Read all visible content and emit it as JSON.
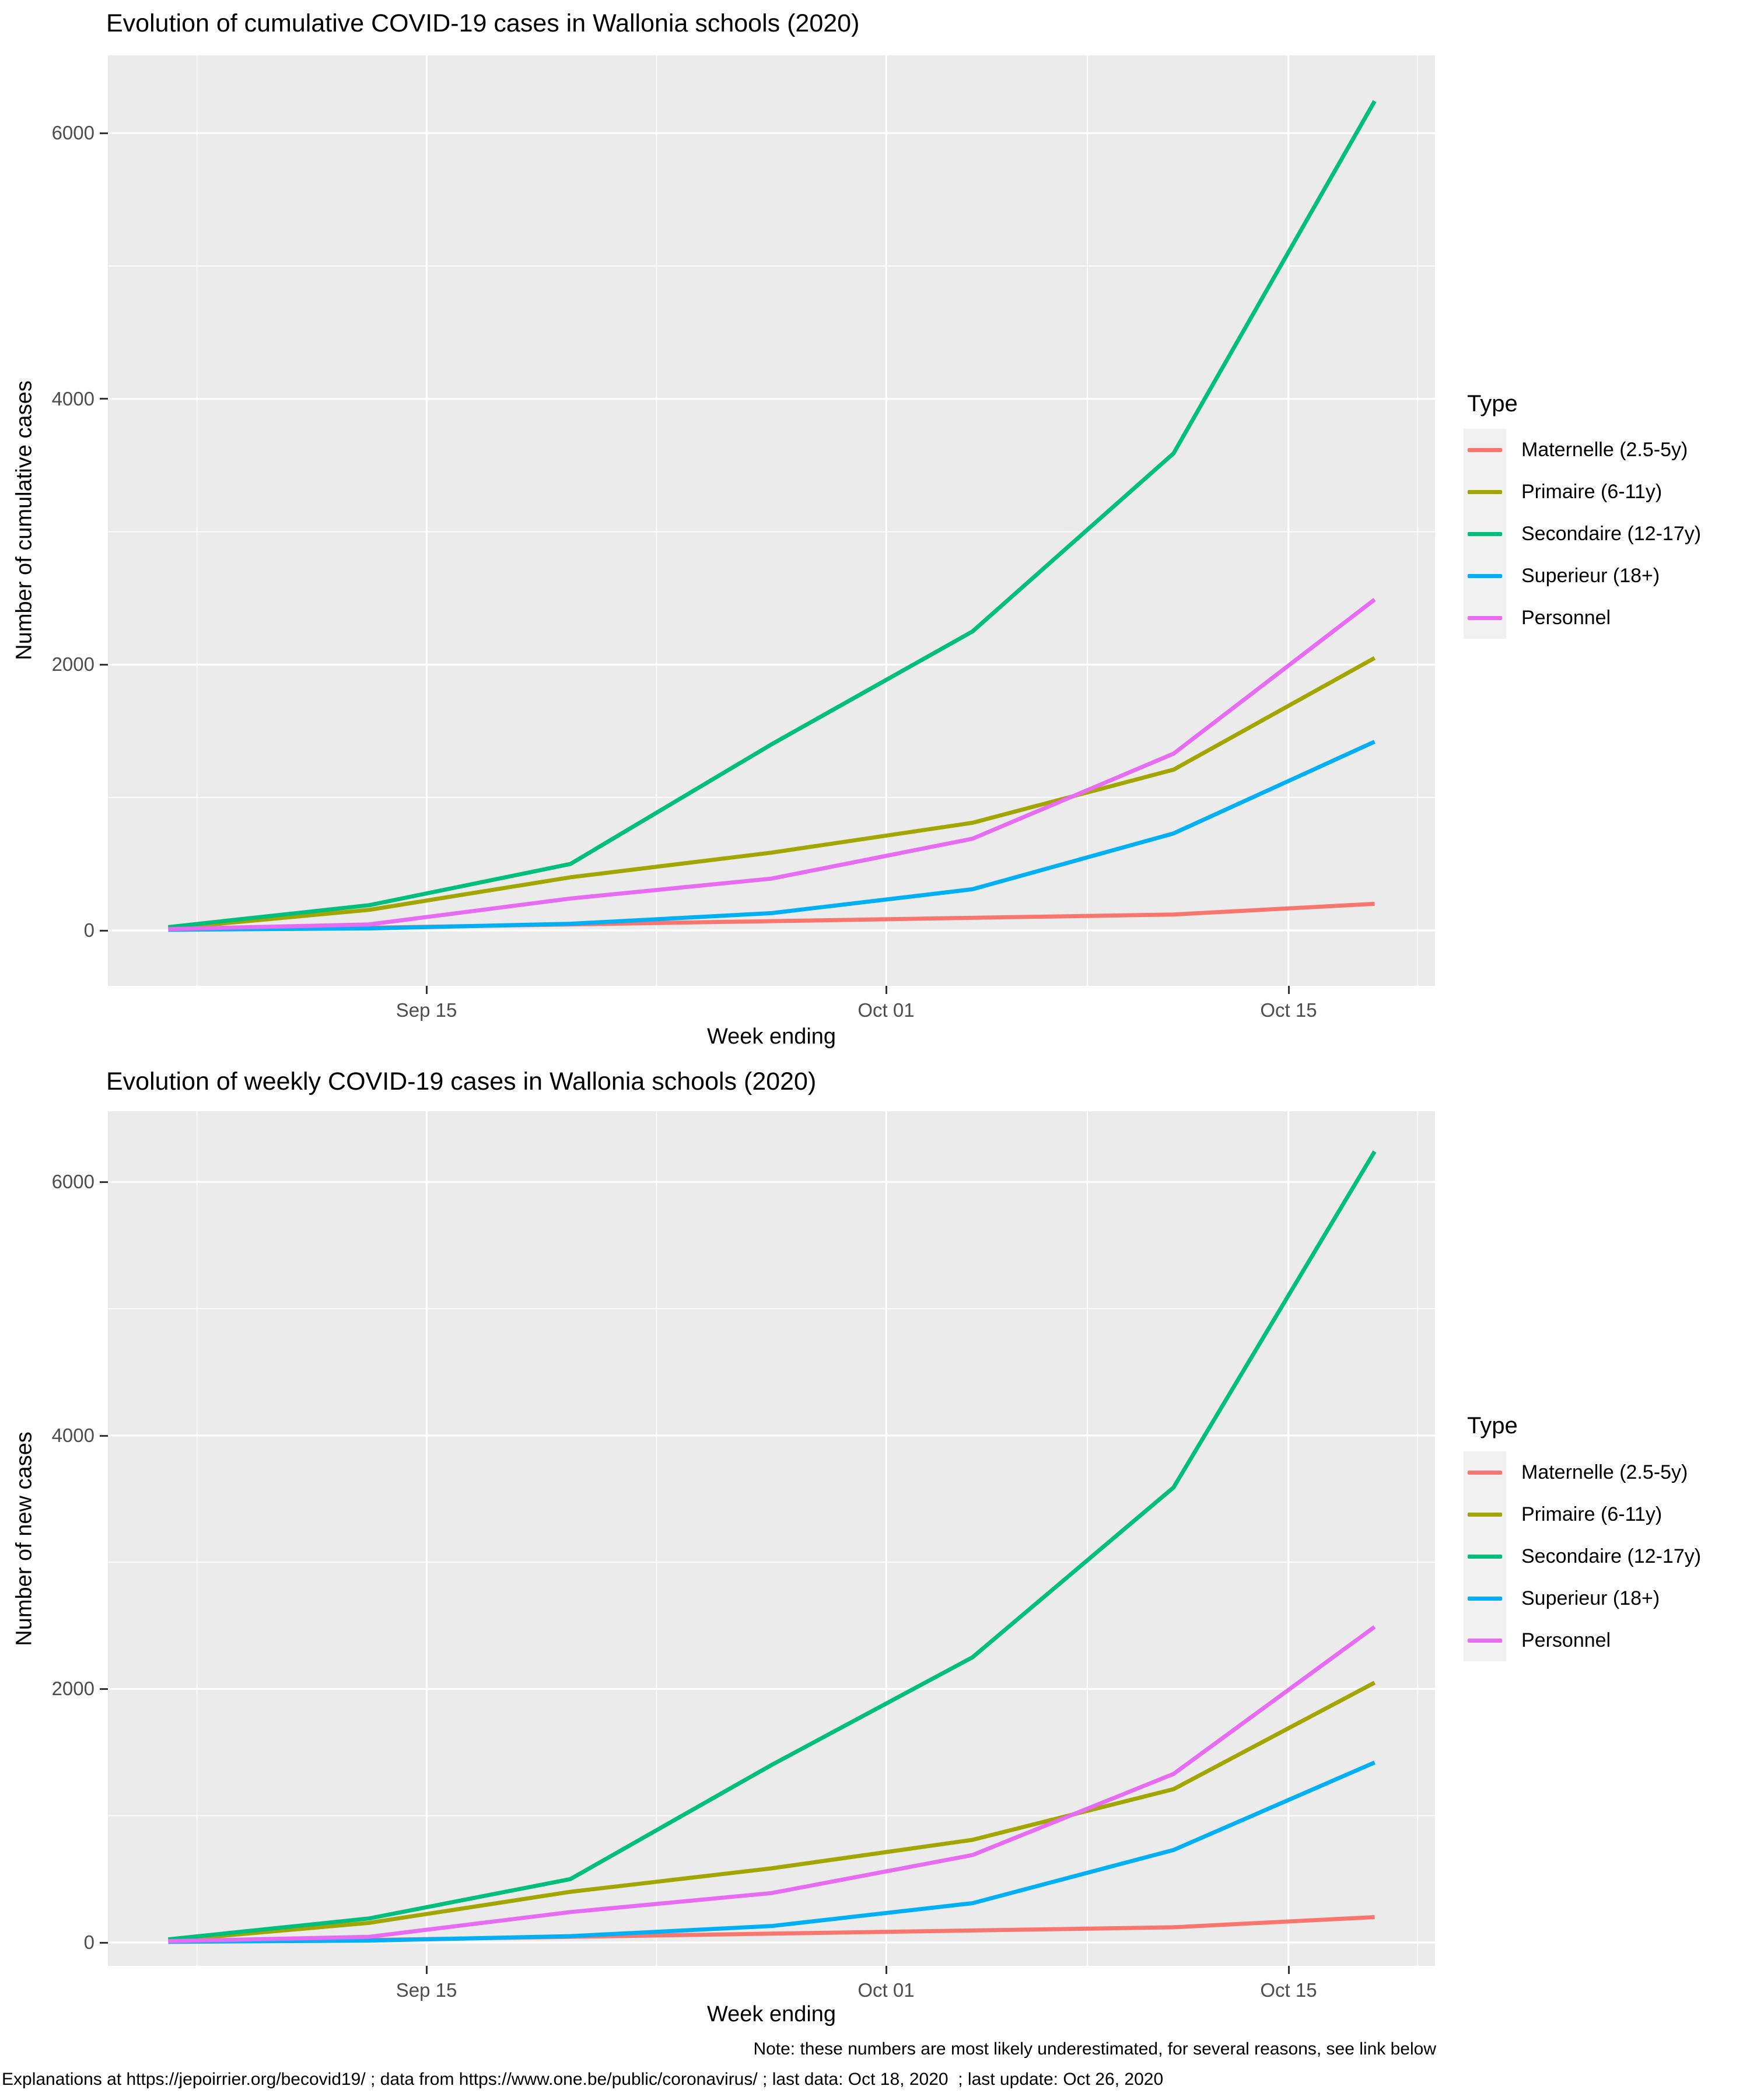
{
  "panel_bg": "#EBEBEB",
  "grid_color": "#FFFFFF",
  "tick_color": "#333333",
  "tick_label_color": "#4D4D4D",
  "footer": {
    "note": "Note: these numbers are most likely underestimated, for several reasons, see link below",
    "source": "Explanations at https://jepoirrier.org/becovid19/ ; data from https://www.one.be/public/coronavirus/ ; last data: Oct 18, 2020  ; last update: Oct 26, 2020"
  },
  "charts": [
    {
      "title": "Evolution of cumulative COVID-19 cases in Wallonia schools (2020)",
      "xlabel": "Week ending",
      "ylabel": "Number of cumulative cases",
      "legend_title": "Type",
      "y_tick_labels": [
        "6000",
        "4000",
        "2000",
        "0"
      ],
      "x_tick_labels": [
        "Sep 15",
        "Oct 01",
        "Oct 15"
      ],
      "chart_data": {
        "type": "line",
        "title": "Evolution of cumulative COVID-19 cases in Wallonia schools (2020)",
        "xlabel": "Week ending",
        "ylabel": "Number of cumulative cases",
        "x": [
          "Sep 06",
          "Sep 13",
          "Sep 20",
          "Sep 27",
          "Oct 04",
          "Oct 11",
          "Oct 18"
        ],
        "x_day_offsets": [
          0,
          7,
          14,
          21,
          28,
          35,
          42
        ],
        "series": [
          {
            "name": "Maternelle (2.5-5y)",
            "color": "#F8766D",
            "values": [
              5,
              20,
              45,
              70,
              95,
              120,
              200
            ]
          },
          {
            "name": "Primaire (6-11y)",
            "color": "#A3A500",
            "values": [
              15,
              155,
              400,
              585,
              810,
              1210,
              2050
            ]
          },
          {
            "name": "Secondaire (12-17y)",
            "color": "#00BF7D",
            "values": [
              25,
              190,
              500,
              1400,
              2250,
              3590,
              6240
            ]
          },
          {
            "name": "Superieur (18+)",
            "color": "#00B0F6",
            "values": [
              5,
              15,
              50,
              130,
              310,
              730,
              1420
            ]
          },
          {
            "name": "Personnel",
            "color": "#E76BF3",
            "values": [
              10,
              45,
              240,
              390,
              690,
              1330,
              2490
            ]
          }
        ],
        "ylim": [
          0,
          6500
        ],
        "x_axis_range": [
          "Sep 06",
          "Oct 18"
        ],
        "y_major_gridlines": [
          0,
          2000,
          4000,
          6000
        ],
        "y_minor_gridlines": [
          1000,
          3000,
          5000
        ],
        "x_tick_days": [
          9,
          25,
          39
        ],
        "x_minor_days": [
          1,
          17,
          32,
          43.5
        ],
        "grid": true,
        "legend_position": "right",
        "legend_title": "Type"
      }
    },
    {
      "title": "Evolution of weekly COVID-19 cases in Wallonia schools (2020)",
      "xlabel": "Week ending",
      "ylabel": "Number of new cases",
      "legend_title": "Type",
      "y_tick_labels": [
        "6000",
        "4000",
        "2000",
        "0"
      ],
      "x_tick_labels": [
        "Sep 15",
        "Oct 01",
        "Oct 15"
      ],
      "chart_data": {
        "type": "line",
        "title": "Evolution of weekly COVID-19 cases in Wallonia schools (2020)",
        "xlabel": "Week ending",
        "ylabel": "Number of new cases",
        "x": [
          "Sep 06",
          "Sep 13",
          "Sep 20",
          "Sep 27",
          "Oct 04",
          "Oct 11",
          "Oct 18"
        ],
        "x_day_offsets": [
          0,
          7,
          14,
          21,
          28,
          35,
          42
        ],
        "series": [
          {
            "name": "Maternelle (2.5-5y)",
            "color": "#F8766D",
            "values": [
              5,
              20,
              45,
              70,
              95,
              120,
              200
            ]
          },
          {
            "name": "Primaire (6-11y)",
            "color": "#A3A500",
            "values": [
              15,
              155,
              400,
              585,
              810,
              1210,
              2050
            ]
          },
          {
            "name": "Secondaire (12-17y)",
            "color": "#00BF7D",
            "values": [
              25,
              190,
              500,
              1400,
              2250,
              3590,
              6240
            ]
          },
          {
            "name": "Superieur (18+)",
            "color": "#00B0F6",
            "values": [
              5,
              15,
              50,
              130,
              310,
              730,
              1420
            ]
          },
          {
            "name": "Personnel",
            "color": "#E76BF3",
            "values": [
              10,
              45,
              240,
              390,
              690,
              1330,
              2490
            ]
          }
        ],
        "ylim": [
          0,
          6500
        ],
        "x_axis_range": [
          "Sep 06",
          "Oct 18"
        ],
        "y_major_gridlines": [
          0,
          2000,
          4000,
          6000
        ],
        "y_minor_gridlines": [
          1000,
          3000,
          5000
        ],
        "x_tick_days": [
          9,
          25,
          39
        ],
        "x_minor_days": [
          1,
          17,
          32,
          43.5
        ],
        "grid": true,
        "legend_position": "right",
        "legend_title": "Type"
      }
    }
  ]
}
